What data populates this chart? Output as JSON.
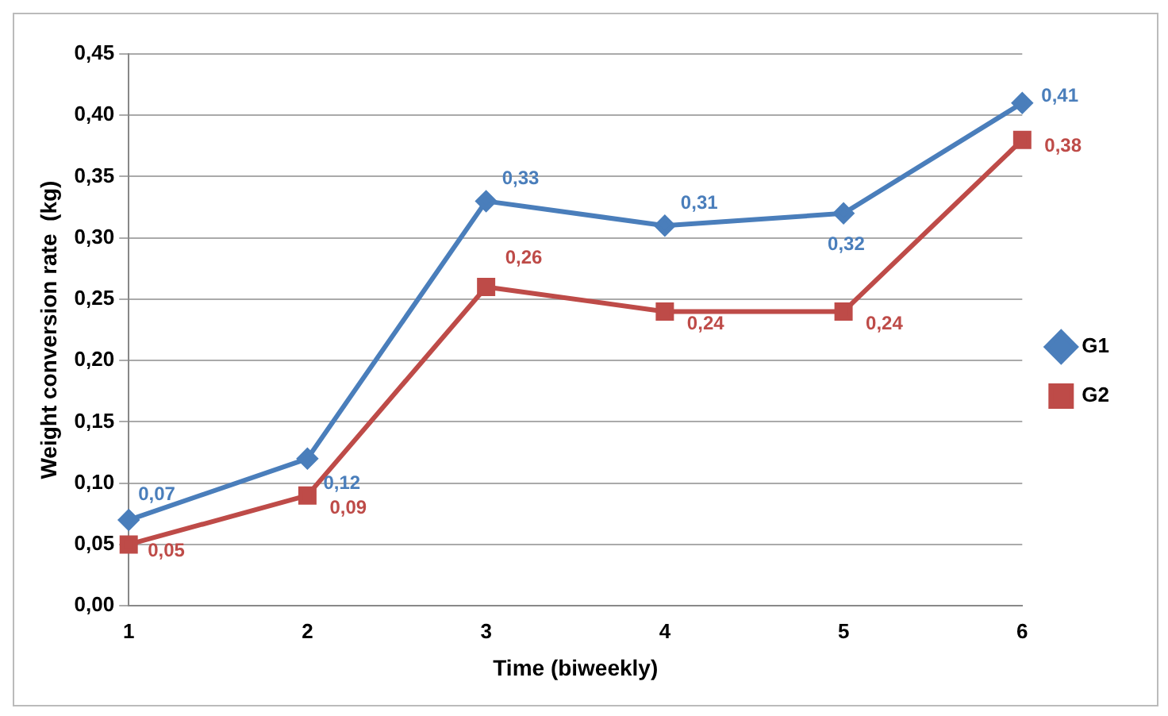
{
  "chart_data": {
    "type": "line",
    "xlabel": "Time (biweekly)",
    "ylabel": "Weight conversion rate  (kg)",
    "categories": [
      "1",
      "2",
      "3",
      "4",
      "5",
      "6"
    ],
    "series": [
      {
        "name": "G1",
        "color": "#4a7ebb",
        "marker": "diamond",
        "values": [
          0.07,
          0.12,
          0.33,
          0.31,
          0.32,
          0.41
        ],
        "value_labels": [
          "0,07",
          "0,12",
          "0,33",
          "0,31",
          "0,32",
          "0,41"
        ]
      },
      {
        "name": "G2",
        "color": "#be4b48",
        "marker": "square",
        "values": [
          0.05,
          0.09,
          0.26,
          0.24,
          0.24,
          0.38
        ],
        "value_labels": [
          "0,05",
          "0,09",
          "0,26",
          "0,24",
          "0,24",
          "0,38"
        ]
      }
    ],
    "ylim": [
      0,
      0.45
    ],
    "yticks": [
      {
        "value": 0,
        "label": "0,00"
      },
      {
        "value": 0.05,
        "label": "0,05"
      },
      {
        "value": 0.1,
        "label": "0,10"
      },
      {
        "value": 0.15,
        "label": "0,15"
      },
      {
        "value": 0.2,
        "label": "0,20"
      },
      {
        "value": 0.25,
        "label": "0,25"
      },
      {
        "value": 0.3,
        "label": "0,30"
      },
      {
        "value": 0.35,
        "label": "0,35"
      },
      {
        "value": 0.4,
        "label": "0,40"
      },
      {
        "value": 0.45,
        "label": "0,45"
      }
    ],
    "grid": "y",
    "legend": "right",
    "line_style": "solid"
  }
}
